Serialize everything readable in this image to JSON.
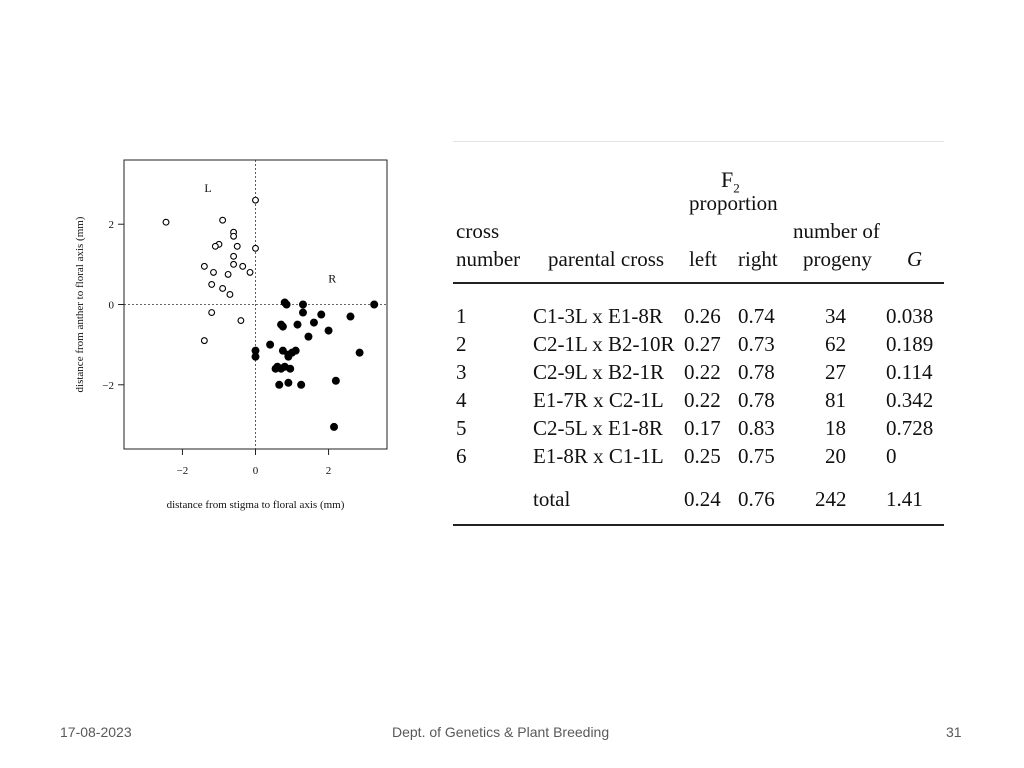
{
  "chart_data": {
    "type": "scatter",
    "xlabel": "distance from stigma to floral axis (mm)",
    "ylabel": "distance from anther to floral axis (mm)",
    "xlim": [
      -3.6,
      3.6
    ],
    "ylim": [
      -3.6,
      3.6
    ],
    "xticks": [
      -2,
      0,
      2
    ],
    "yticks": [
      -2,
      0,
      2
    ],
    "reference_lines": {
      "x": 0,
      "y": 0,
      "style": "dotted"
    },
    "annotations": [
      {
        "text": "L",
        "x": -1.3,
        "y": 2.8
      },
      {
        "text": "R",
        "x": 2.1,
        "y": 0.55
      }
    ],
    "series": [
      {
        "marker": "open-circle",
        "points": [
          [
            -2.45,
            2.05
          ],
          [
            -0.9,
            2.1
          ],
          [
            0.0,
            2.6
          ],
          [
            -1.0,
            1.5
          ],
          [
            -1.1,
            1.45
          ],
          [
            -0.6,
            1.8
          ],
          [
            -0.6,
            1.7
          ],
          [
            -0.5,
            1.45
          ],
          [
            0.0,
            1.4
          ],
          [
            -0.6,
            1.2
          ],
          [
            -1.4,
            0.95
          ],
          [
            -0.6,
            1.0
          ],
          [
            -0.35,
            0.95
          ],
          [
            -0.15,
            0.8
          ],
          [
            -1.15,
            0.8
          ],
          [
            -0.75,
            0.75
          ],
          [
            -1.2,
            0.5
          ],
          [
            -0.9,
            0.4
          ],
          [
            -0.7,
            0.25
          ],
          [
            -1.2,
            -0.2
          ],
          [
            -0.4,
            -0.4
          ],
          [
            -1.4,
            -0.9
          ]
        ]
      },
      {
        "marker": "filled-circle",
        "points": [
          [
            3.25,
            0.0
          ],
          [
            1.3,
            0.0
          ],
          [
            0.8,
            0.05
          ],
          [
            0.85,
            0.0
          ],
          [
            1.3,
            -0.2
          ],
          [
            1.8,
            -0.25
          ],
          [
            2.6,
            -0.3
          ],
          [
            1.6,
            -0.45
          ],
          [
            1.15,
            -0.5
          ],
          [
            0.7,
            -0.5
          ],
          [
            0.75,
            -0.55
          ],
          [
            2.0,
            -0.65
          ],
          [
            1.45,
            -0.8
          ],
          [
            0.4,
            -1.0
          ],
          [
            0.0,
            -1.15
          ],
          [
            0.75,
            -1.15
          ],
          [
            1.1,
            -1.15
          ],
          [
            1.0,
            -1.2
          ],
          [
            2.85,
            -1.2
          ],
          [
            0.9,
            -1.25
          ],
          [
            0.9,
            -1.3
          ],
          [
            0.0,
            -1.3
          ],
          [
            0.6,
            -1.55
          ],
          [
            0.8,
            -1.55
          ],
          [
            0.55,
            -1.6
          ],
          [
            0.7,
            -1.6
          ],
          [
            0.95,
            -1.6
          ],
          [
            2.2,
            -1.9
          ],
          [
            0.9,
            -1.95
          ],
          [
            0.65,
            -2.0
          ],
          [
            1.25,
            -2.0
          ],
          [
            2.15,
            -3.05
          ]
        ]
      }
    ]
  },
  "table": {
    "f2_label": "F",
    "f2_sub": "2",
    "proportion_label": "proportion",
    "headers": {
      "cross_1": "cross",
      "cross_2": "number",
      "parental": "parental cross",
      "left": "left",
      "right": "right",
      "progeny_1": "number of",
      "progeny_2": "progeny",
      "g": "G"
    },
    "rows": [
      [
        "1",
        "C1-3L x E1-8R",
        "0.26",
        "0.74",
        "34",
        "0.038"
      ],
      [
        "2",
        "C2-1L x B2-10R",
        "0.27",
        "0.73",
        "62",
        "0.189"
      ],
      [
        "3",
        "C2-9L x B2-1R",
        "0.22",
        "0.78",
        "27",
        "0.114"
      ],
      [
        "4",
        "E1-7R x C2-1L",
        "0.22",
        "0.78",
        "81",
        "0.342"
      ],
      [
        "5",
        "C2-5L x E1-8R",
        "0.17",
        "0.83",
        "18",
        "0.728"
      ],
      [
        "6",
        "E1-8R x C1-1L",
        "0.25",
        "0.75",
        "20",
        "0"
      ]
    ],
    "total": {
      "label": "total",
      "left": "0.24",
      "right": "0.76",
      "progeny": "242",
      "g": "1.41"
    }
  },
  "footer": {
    "date": "17-08-2023",
    "department": "Dept. of Genetics & Plant Breeding",
    "page_number": "31"
  }
}
